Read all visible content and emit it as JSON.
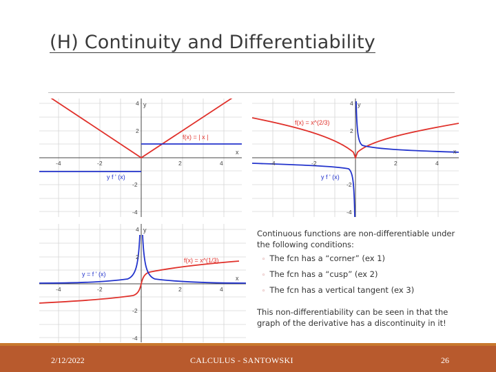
{
  "slide": {
    "title": "(H) Continuity and Differentiability"
  },
  "graphs": [
    {
      "name": "abs-graph",
      "f_label": "f(x) = | x |",
      "fprime_label": "y    f ' (x)",
      "axis_x": "x",
      "axis_y": "y",
      "ticks_x": [
        "-4",
        "-2",
        "2",
        "4"
      ],
      "ticks_y": [
        "4",
        "2",
        "-2",
        "-4"
      ]
    },
    {
      "name": "cusp-graph",
      "f_label": "f(x) = x^(2/3)",
      "fprime_label": "y    f ' (x)",
      "axis_x": "x",
      "axis_y": "y",
      "ticks_x": [
        "-4",
        "-2",
        "2",
        "4"
      ],
      "ticks_y": [
        "4",
        "2",
        "-2",
        "-4"
      ]
    },
    {
      "name": "vertical-tangent-graph",
      "f_label": "f(x) = x^(1/3)",
      "fprime_label": "y = f ' (x)",
      "axis_x": "x",
      "axis_y": "y",
      "ticks_x": [
        "-4",
        "-2",
        "2",
        "4"
      ],
      "ticks_y": [
        "4",
        "2",
        "-2",
        "-4"
      ]
    }
  ],
  "notes": {
    "intro": "Continuous functions are non-differentiable under the following conditions:",
    "bullets": [
      "The fcn has a “corner” (ex 1)",
      "The fcn has a “cusp” (ex 2)",
      "The fcn has a vertical tangent  (ex 3)"
    ],
    "conclusion": "This non-differentiability can be seen in that the graph of the derivative has a discontinuity in it!"
  },
  "footer": {
    "date": "2/12/2022",
    "center": "CALCULUS - SANTOWSKI",
    "page": "26"
  },
  "colors": {
    "function_curve": "#e0312b",
    "derivative_curve": "#2233cc",
    "footer_bg": "#b85a2d",
    "grid": "#d3d3d3"
  }
}
